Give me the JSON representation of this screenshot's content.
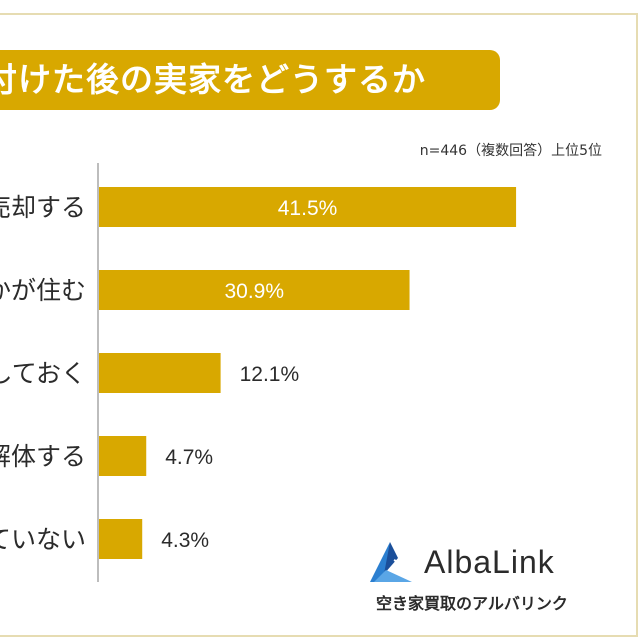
{
  "title": "片付けた後の実家をどうするか",
  "note": "n=446（複数回答）上位5位",
  "brand": {
    "name": "AlbaLink",
    "tagline": "空き家買取のアルバリンク"
  },
  "colors": {
    "bar": "#d8a800",
    "value_label_outside": "#2b2b2b",
    "value_label_inside": "#ffffff",
    "logo_blue": "#2b7fd0",
    "logo_dark_blue": "#1b4f9a"
  },
  "chart_data": {
    "type": "bar",
    "orientation": "horizontal",
    "categories": [
      "売却する",
      "家族の誰かが住む",
      "そのままにしておく",
      "解体する",
      "決まっていない"
    ],
    "category_labels_visible": [
      "売却する",
      "かが住む",
      "しておく",
      "解体する",
      "ていない"
    ],
    "values": [
      41.5,
      30.9,
      12.1,
      4.7,
      4.3
    ],
    "value_labels": [
      "41.5%",
      "30.9%",
      "12.1%",
      "4.7%",
      "4.3%"
    ],
    "unit": "%",
    "xlim": [
      0,
      50
    ],
    "grid": false,
    "legend": "none"
  }
}
